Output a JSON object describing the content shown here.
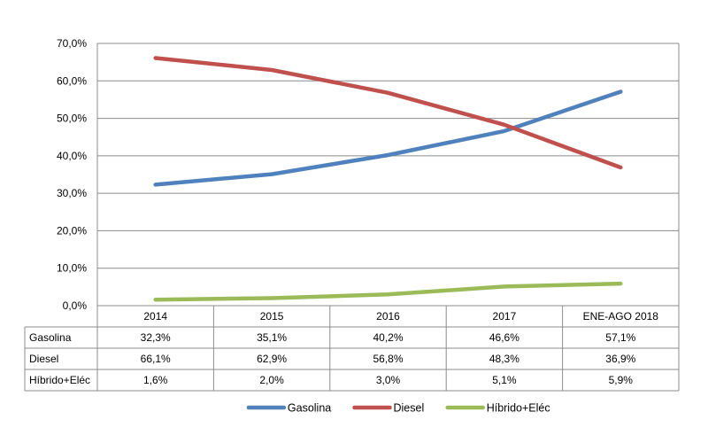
{
  "chart_data": {
    "type": "line",
    "categories": [
      "2014",
      "2015",
      "2016",
      "2017",
      "ENE-AGO 2018"
    ],
    "series": [
      {
        "name": "Gasolina",
        "values": [
          32.3,
          35.1,
          40.2,
          46.6,
          57.1
        ],
        "labels": [
          "32,3%",
          "35,1%",
          "40,2%",
          "46,6%",
          "57,1%"
        ],
        "color": "#4f81bd"
      },
      {
        "name": "Diesel",
        "values": [
          66.1,
          62.9,
          56.8,
          48.3,
          36.9
        ],
        "labels": [
          "66,1%",
          "62,9%",
          "56,8%",
          "48,3%",
          "36,9%"
        ],
        "color": "#c0504d"
      },
      {
        "name": "Híbrido+Eléc",
        "values": [
          1.6,
          2.0,
          3.0,
          5.1,
          5.9
        ],
        "labels": [
          "1,6%",
          "2,0%",
          "3,0%",
          "5,1%",
          "5,9%"
        ],
        "color": "#9bbb59"
      }
    ],
    "ylim": [
      0,
      70
    ],
    "yticks": [
      "0,0%",
      "10,0%",
      "20,0%",
      "30,0%",
      "40,0%",
      "50,0%",
      "60,0%",
      "70,0%"
    ],
    "grid": true,
    "legend": "bottom",
    "data_table": true
  }
}
